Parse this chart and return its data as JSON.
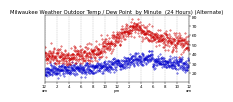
{
  "title": "Milwaukee Weather Outdoor Temp / Dew Point  by Minute  (24 Hours) (Alternate)",
  "title_fontsize": 3.8,
  "background_color": "#ffffff",
  "temp_color": "#cc0000",
  "dew_color": "#0000cc",
  "ylim": [
    10,
    82
  ],
  "xlim": [
    0,
    1440
  ],
  "yticks": [
    20,
    30,
    40,
    50,
    60,
    70,
    80
  ],
  "ytick_fontsize": 3.2,
  "xtick_fontsize": 2.8,
  "num_points": 1440,
  "grid_color": "#888888",
  "seed": 77
}
